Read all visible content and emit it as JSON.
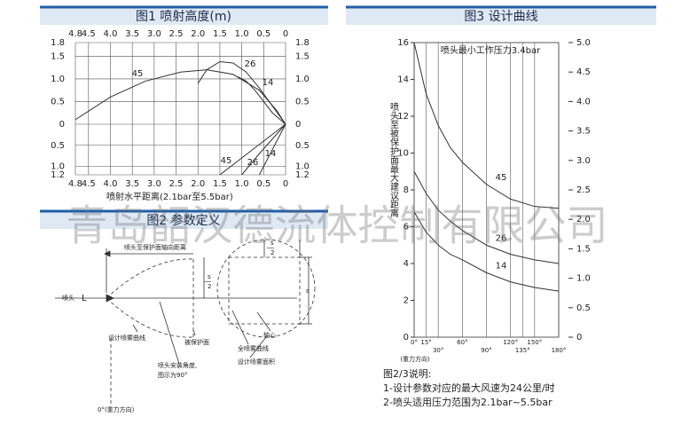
{
  "fig1": {
    "title": "图1 喷射高度(m)",
    "x_label": "喷射水平距离(2.1bar至5.5bar)",
    "xlim": [
      4.8,
      0
    ],
    "xticks": [
      4.8,
      4.5,
      {
        "value": 4,
        "label": "4.0"
      },
      3.5,
      {
        "value": 3,
        "label": "3.0"
      },
      2.5,
      {
        "value": 2,
        "label": "2.0"
      },
      1.5,
      {
        "value": 1,
        "label": "1.0"
      },
      0.5,
      0
    ],
    "ylim": [
      -1.2,
      1.8
    ],
    "yticks": [
      1.8,
      1.5,
      {
        "value": 1,
        "label": "1.0"
      },
      0.5,
      0,
      {
        "value": -0.5,
        "label": "0.5"
      },
      {
        "value": -1,
        "label": "1.0"
      },
      {
        "value": -1.2,
        "label": "1.2"
      }
    ],
    "series": [
      {
        "name": "45",
        "x": [
          4.8,
          4.0,
          3.2,
          2.4,
          1.8,
          1.2,
          0.6,
          0.2,
          0
        ],
        "values": [
          0.1,
          0.6,
          0.95,
          1.15,
          1.2,
          1.1,
          0.75,
          0.3,
          0
        ]
      },
      {
        "name": "26",
        "x": [
          2.0,
          1.8,
          1.5,
          1.2,
          0.9,
          0.6,
          0.3,
          0
        ],
        "values": [
          0.9,
          1.2,
          1.38,
          1.35,
          1.15,
          0.8,
          0.4,
          0
        ]
      },
      {
        "name": "14",
        "x": [
          1.1,
          0.9,
          0.7,
          0.5,
          0.3,
          0
        ],
        "values": [
          1.05,
          0.95,
          0.75,
          0.5,
          0.25,
          0
        ]
      },
      {
        "name": "45",
        "x": [
          1.5,
          1.0,
          0.5,
          0
        ],
        "values": [
          -1.2,
          -0.8,
          -0.4,
          0
        ]
      },
      {
        "name": "26",
        "x": [
          1.0,
          0.6,
          0.3,
          0
        ],
        "values": [
          -1.2,
          -0.7,
          -0.35,
          0
        ]
      },
      {
        "name": "14",
        "x": [
          0.6,
          0.4,
          0.2,
          0
        ],
        "values": [
          -1.2,
          -0.8,
          -0.4,
          0
        ]
      }
    ]
  },
  "fig2": {
    "title": "图2 参数定义",
    "axial_distance": "喷头至保护面轴向距离",
    "nozzle": "喷头",
    "L": "L",
    "s": "s",
    "half_num": "s",
    "half_den": "2",
    "design_curve": "设计喷雾曲线",
    "protected_surface": "被保护面",
    "axis": "轴心",
    "full_curve": "全喷雾曲线",
    "angle_1": "喷头安装角度,",
    "angle_2": "图示为90°",
    "design_area": "设计喷雾面积",
    "gravity": "0°(重力方向)"
  },
  "fig3": {
    "title": "图3 设计曲线",
    "inner_title": "喷头最小工作压力3.4bar",
    "y_label": "喷头至被保护面最大建议距离",
    "x_note": "(重力方向)",
    "xlim": [
      0,
      180
    ],
    "xticks": [
      {
        "value": 0,
        "label": "0°"
      },
      {
        "value": 15,
        "label": "15°"
      },
      {
        "value": 30,
        "label": "30°"
      },
      {
        "value": 60,
        "label": "60°"
      },
      {
        "value": 90,
        "label": "90°"
      },
      {
        "value": 120,
        "label": "120°"
      },
      {
        "value": 135,
        "label": "135°"
      },
      {
        "value": 150,
        "label": "150°"
      },
      {
        "value": 180,
        "label": "180°"
      }
    ],
    "ylim": [
      0,
      16
    ],
    "yticks": [
      0,
      2,
      4,
      6,
      8,
      10,
      12,
      14,
      16
    ],
    "y2lim": [
      0,
      5
    ],
    "y2ticks": [
      0,
      0.5,
      {
        "value": 1,
        "label": "1.0"
      },
      1.5,
      {
        "value": 2,
        "label": "2.0"
      },
      2.5,
      {
        "value": 3,
        "label": "3.0"
      },
      3.5,
      {
        "value": 4,
        "label": "4.0"
      },
      4.5,
      {
        "value": 5,
        "label": "5.0"
      }
    ],
    "series": [
      {
        "name": "45",
        "x": [
          0,
          15,
          30,
          45,
          60,
          90,
          120,
          150,
          180
        ],
        "values": [
          16,
          13.2,
          11.5,
          10.3,
          9.5,
          8.3,
          7.5,
          7.1,
          7.0
        ]
      },
      {
        "name": "26",
        "x": [
          0,
          15,
          30,
          45,
          60,
          90,
          120,
          150,
          180
        ],
        "values": [
          9.0,
          7.8,
          6.9,
          6.3,
          5.8,
          5.0,
          4.5,
          4.2,
          4.0
        ]
      },
      {
        "name": "14",
        "x": [
          0,
          15,
          30,
          45,
          60,
          90,
          120,
          150,
          180
        ],
        "values": [
          6.8,
          5.7,
          5.0,
          4.5,
          4.2,
          3.5,
          3.0,
          2.7,
          2.5
        ]
      }
    ]
  },
  "notes": {
    "title": "图2/3说明:",
    "lines": [
      "1-设计参数对应的最大风速为24公里/时",
      "2-喷头适用压力范围为2.1bar~5.5bar"
    ]
  },
  "watermark": "青岛韶汉德流体控制有限公司"
}
